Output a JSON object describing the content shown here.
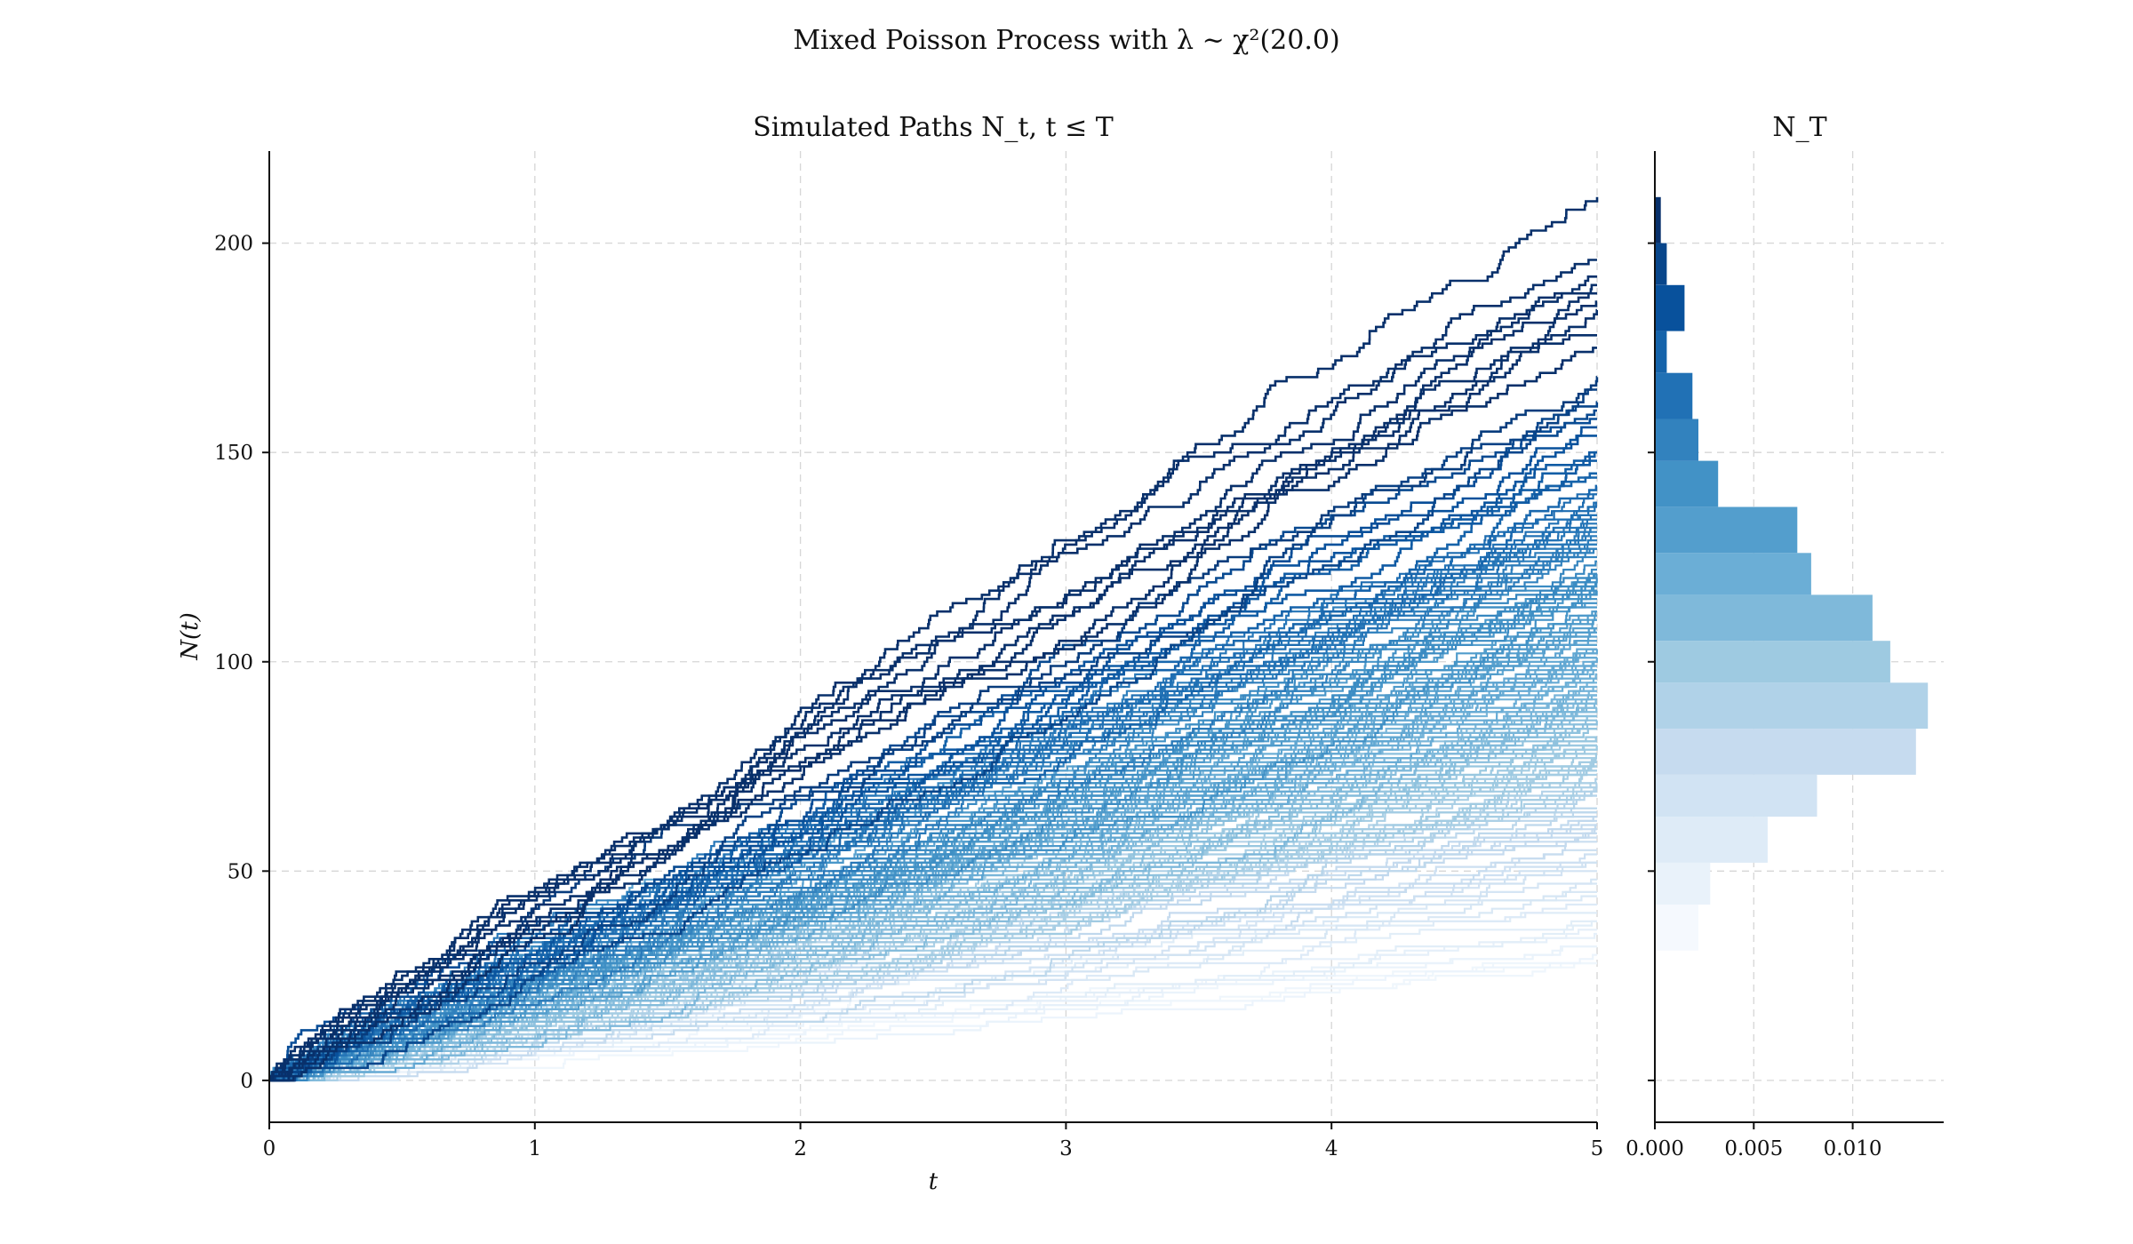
{
  "figure": {
    "suptitle": "Mixed Poisson Process with λ ~ χ²(20.0)"
  },
  "chart_data": [
    {
      "type": "line",
      "title": "Simulated Paths N_t, t ≤ T",
      "xlabel": "t",
      "ylabel": "N(t)",
      "xlim": [
        0,
        5
      ],
      "ylim": [
        -10,
        222
      ],
      "xticks": [
        0,
        1,
        2,
        3,
        4,
        5
      ],
      "yticks": [
        0,
        50,
        100,
        150,
        200
      ],
      "grid": true,
      "step_paths": true,
      "color_scale": "Blues (darker = larger N_T)",
      "n_paths": 200,
      "path_final_values_sample": [
        211,
        196,
        192,
        190,
        188,
        186,
        184,
        178,
        175,
        168,
        165,
        162,
        160,
        158,
        156,
        154,
        150,
        145,
        142,
        140,
        138,
        135,
        132,
        130,
        128,
        125,
        122,
        120,
        118,
        115,
        112,
        110,
        108,
        105,
        102,
        100,
        98,
        95,
        92,
        90,
        88,
        85,
        82,
        80,
        78,
        75,
        72,
        70,
        68,
        65,
        62,
        60,
        58,
        55,
        52,
        50,
        48,
        45,
        42,
        40,
        38,
        35,
        32,
        30
      ]
    },
    {
      "type": "bar",
      "orientation": "horizontal",
      "title": "N_T",
      "xlim": [
        0,
        0.0146
      ],
      "xticks": [
        0.0,
        0.005,
        0.01
      ],
      "xtick_labels": [
        "0.000",
        "0.005",
        "0.010"
      ],
      "ylim": [
        -10,
        222
      ],
      "grid": true,
      "bins": [
        {
          "y0": 31,
          "y1": 42,
          "value": 0.0022,
          "color": "#f5f9fe"
        },
        {
          "y0": 42,
          "y1": 52,
          "value": 0.0028,
          "color": "#e9f2fa"
        },
        {
          "y0": 52,
          "y1": 63,
          "value": 0.0057,
          "color": "#deebf7"
        },
        {
          "y0": 63,
          "y1": 73,
          "value": 0.0082,
          "color": "#d1e3f3"
        },
        {
          "y0": 73,
          "y1": 84,
          "value": 0.0132,
          "color": "#c6dbef"
        },
        {
          "y0": 84,
          "y1": 95,
          "value": 0.0138,
          "color": "#b0d2e8"
        },
        {
          "y0": 95,
          "y1": 105,
          "value": 0.0119,
          "color": "#9ecae1"
        },
        {
          "y0": 105,
          "y1": 116,
          "value": 0.011,
          "color": "#7fb9da"
        },
        {
          "y0": 116,
          "y1": 126,
          "value": 0.0079,
          "color": "#6baed6"
        },
        {
          "y0": 126,
          "y1": 137,
          "value": 0.0072,
          "color": "#539ecd"
        },
        {
          "y0": 137,
          "y1": 148,
          "value": 0.0032,
          "color": "#4292c6"
        },
        {
          "y0": 148,
          "y1": 158,
          "value": 0.0022,
          "color": "#3282be"
        },
        {
          "y0": 158,
          "y1": 169,
          "value": 0.0019,
          "color": "#2171b5"
        },
        {
          "y0": 169,
          "y1": 179,
          "value": 0.0006,
          "color": "#1563aa"
        },
        {
          "y0": 179,
          "y1": 190,
          "value": 0.0015,
          "color": "#08519c"
        },
        {
          "y0": 190,
          "y1": 200,
          "value": 0.0006,
          "color": "#08468b"
        },
        {
          "y0": 200,
          "y1": 211,
          "value": 0.0003,
          "color": "#08306b"
        }
      ]
    }
  ]
}
